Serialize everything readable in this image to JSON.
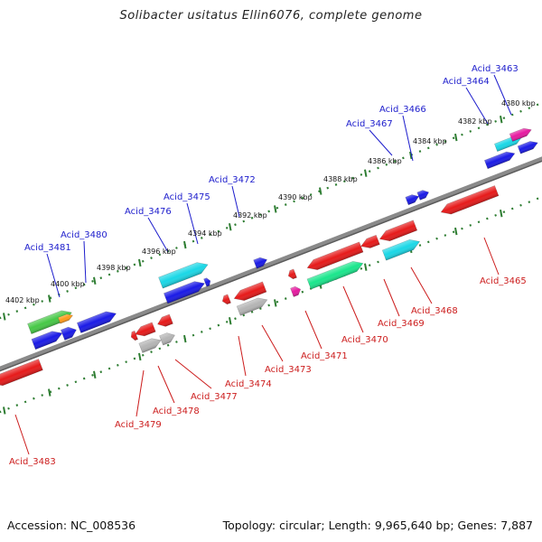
{
  "title": "Solibacter usitatus Ellin6076, complete genome",
  "accession": "Accession: NC_008536",
  "summary": "Topology: circular; Length: 9,965,640 bp; Genes: 7,887",
  "colors": {
    "backbone": "#808080",
    "tick_track": "#2e7d32",
    "label_top": "#1c1ccc",
    "label_bottom": "#cc1c1c",
    "blue": "#1a1ae6",
    "red": "#e61a1a",
    "cyan": "#1ad7e6",
    "green": "#1ae68c",
    "gray": "#b4b4b4",
    "magenta": "#e61aa0",
    "lime": "#46c846",
    "orange": "#ff9a1a"
  },
  "kbp_labels": [
    "4380 kbp",
    "4382 kbp",
    "4384 kbp",
    "4386 kbp",
    "4388 kbp",
    "4390 kbp",
    "4392 kbp",
    "4394 kbp",
    "4396 kbp",
    "4398 kbp",
    "4400 kbp",
    "4402 kbp"
  ],
  "labels_top": [
    "Acid_3463",
    "Acid_3464",
    "Acid_3466",
    "Acid_3467",
    "Acid_3472",
    "Acid_3475",
    "Acid_3476",
    "Acid_3480",
    "Acid_3481"
  ],
  "labels_bottom": [
    "Acid_3465",
    "Acid_3468",
    "Acid_3469",
    "Acid_3470",
    "Acid_3471",
    "Acid_3473",
    "Acid_3474",
    "Acid_3477",
    "Acid_3478",
    "Acid_3479",
    "Acid_3483"
  ]
}
